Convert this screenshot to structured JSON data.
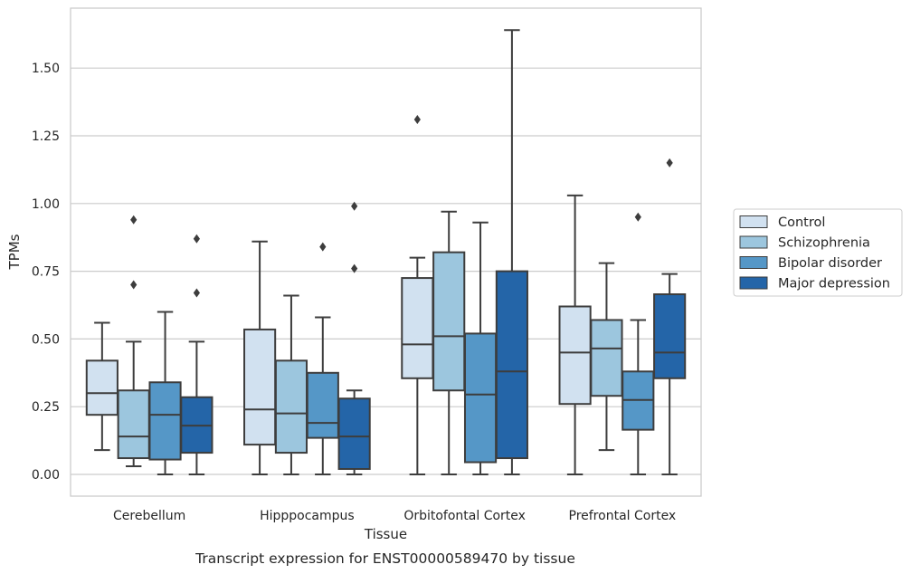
{
  "chart_data": {
    "type": "box",
    "title": "",
    "caption": "Transcript expression for ENST00000589470 by tissue",
    "xlabel": "Tissue",
    "ylabel": "TPMs",
    "ylim": [
      -0.08,
      1.69
    ],
    "yticks": [
      0.0,
      0.25,
      0.5,
      0.75,
      1.0,
      1.25,
      1.5
    ],
    "ytick_labels": [
      "0.00",
      "0.25",
      "0.50",
      "0.75",
      "1.00",
      "1.25",
      "1.50"
    ],
    "grid": "horizontal",
    "legend_position": "outside-right",
    "categories": [
      "Cerebellum",
      "Hipppocampus",
      "Orbitofontal Cortex",
      "Prefrontal Cortex"
    ],
    "series": [
      {
        "name": "Control",
        "color": "#d1e1f0",
        "boxes": [
          {
            "whislo": 0.09,
            "q1": 0.22,
            "med": 0.3,
            "q3": 0.42,
            "whishi": 0.56,
            "fliers": []
          },
          {
            "whislo": 0.0,
            "q1": 0.11,
            "med": 0.24,
            "q3": 0.535,
            "whishi": 0.86,
            "fliers": []
          },
          {
            "whislo": 0.0,
            "q1": 0.355,
            "med": 0.48,
            "q3": 0.725,
            "whishi": 0.8,
            "fliers": [
              1.31
            ]
          },
          {
            "whislo": 0.0,
            "q1": 0.26,
            "med": 0.45,
            "q3": 0.62,
            "whishi": 1.03,
            "fliers": []
          }
        ]
      },
      {
        "name": "Schizophrenia",
        "color": "#9cc6de",
        "boxes": [
          {
            "whislo": 0.03,
            "q1": 0.06,
            "med": 0.14,
            "q3": 0.31,
            "whishi": 0.49,
            "fliers": [
              0.7,
              0.94
            ]
          },
          {
            "whislo": 0.0,
            "q1": 0.08,
            "med": 0.225,
            "q3": 0.42,
            "whishi": 0.66,
            "fliers": []
          },
          {
            "whislo": 0.0,
            "q1": 0.31,
            "med": 0.51,
            "q3": 0.82,
            "whishi": 0.97,
            "fliers": []
          },
          {
            "whislo": 0.09,
            "q1": 0.29,
            "med": 0.465,
            "q3": 0.57,
            "whishi": 0.78,
            "fliers": []
          }
        ]
      },
      {
        "name": "Bipolar disorder",
        "color": "#5597c7",
        "boxes": [
          {
            "whislo": 0.0,
            "q1": 0.055,
            "med": 0.22,
            "q3": 0.34,
            "whishi": 0.6,
            "fliers": []
          },
          {
            "whislo": 0.0,
            "q1": 0.135,
            "med": 0.19,
            "q3": 0.375,
            "whishi": 0.58,
            "fliers": [
              0.84
            ]
          },
          {
            "whislo": 0.0,
            "q1": 0.045,
            "med": 0.295,
            "q3": 0.52,
            "whishi": 0.93,
            "fliers": []
          },
          {
            "whislo": 0.0,
            "q1": 0.165,
            "med": 0.275,
            "q3": 0.38,
            "whishi": 0.57,
            "fliers": [
              0.95
            ]
          }
        ]
      },
      {
        "name": "Major depression",
        "color": "#2465a8",
        "boxes": [
          {
            "whislo": 0.0,
            "q1": 0.08,
            "med": 0.18,
            "q3": 0.285,
            "whishi": 0.49,
            "fliers": [
              0.67,
              0.87
            ]
          },
          {
            "whislo": 0.0,
            "q1": 0.02,
            "med": 0.14,
            "q3": 0.28,
            "whishi": 0.31,
            "fliers": [
              0.76,
              0.99
            ]
          },
          {
            "whislo": 0.0,
            "q1": 0.06,
            "med": 0.38,
            "q3": 0.75,
            "whishi": 1.64,
            "fliers": []
          },
          {
            "whislo": 0.0,
            "q1": 0.355,
            "med": 0.45,
            "q3": 0.665,
            "whishi": 0.74,
            "fliers": [
              1.15
            ]
          }
        ]
      }
    ]
  }
}
